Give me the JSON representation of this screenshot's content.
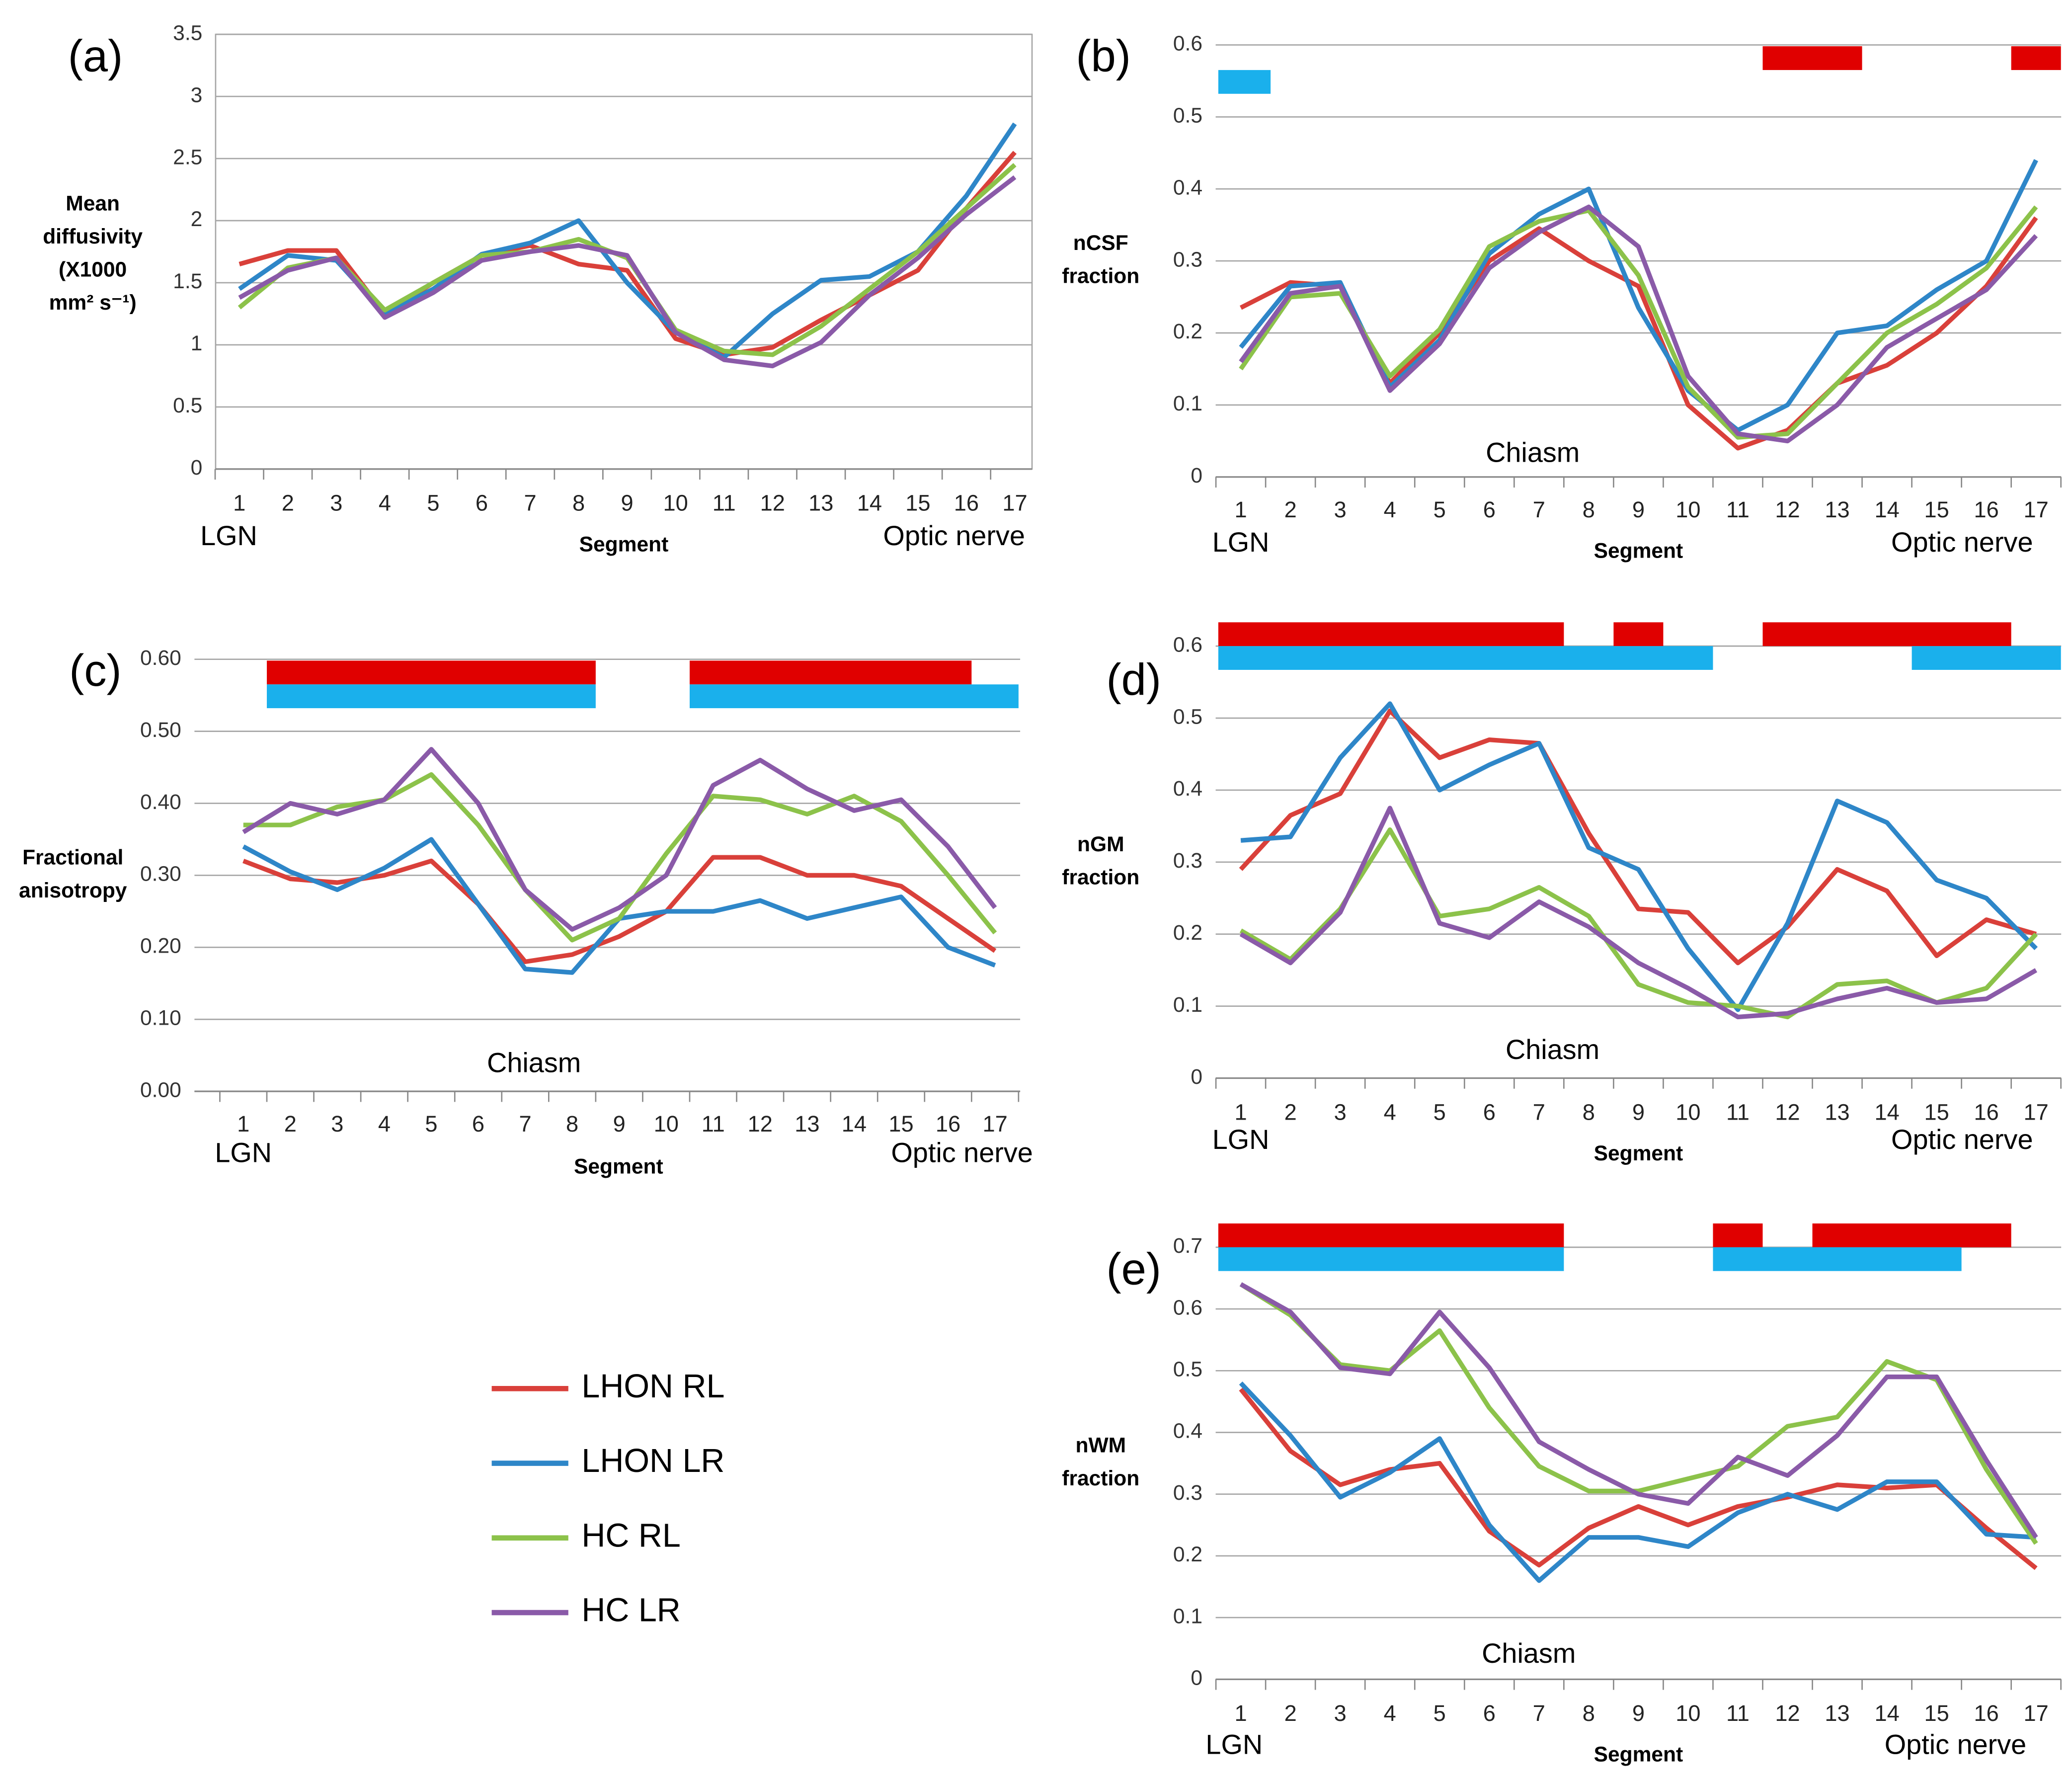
{
  "legend": {
    "entries": [
      {
        "name": "LHON RL",
        "color": "#d9403a"
      },
      {
        "name": "LHON LR",
        "color": "#2e86c8"
      },
      {
        "name": "HC RL",
        "color": "#8cc24a"
      },
      {
        "name": "HC LR",
        "color": "#8a5aa8"
      }
    ]
  },
  "chart_data": [
    {
      "type": "line",
      "panel": "(a)",
      "y_label": [
        "Mean",
        "diffusivity",
        "(X1000",
        "mm² s⁻¹)"
      ],
      "x_label": "Segment",
      "categories": [
        "1",
        "2",
        "3",
        "4",
        "5",
        "6",
        "7",
        "8",
        "9",
        "10",
        "11",
        "12",
        "13",
        "14",
        "15",
        "16",
        "17"
      ],
      "start_label": "LGN",
      "end_label": "Optic nerve",
      "ylim": [
        0,
        3.5
      ],
      "yticks": [
        0,
        0.5,
        1,
        1.5,
        2,
        2.5,
        3,
        3.5
      ],
      "grid": true,
      "series": [
        {
          "values": [
            1.65,
            1.76,
            1.76,
            1.25,
            1.5,
            1.72,
            1.8,
            1.65,
            1.6,
            1.05,
            0.92,
            0.98,
            1.2,
            1.4,
            1.6,
            2.1,
            2.55
          ]
        },
        {
          "values": [
            1.45,
            1.72,
            1.68,
            1.25,
            1.45,
            1.73,
            1.82,
            2.0,
            1.5,
            1.1,
            0.9,
            1.25,
            1.52,
            1.55,
            1.75,
            2.2,
            2.78
          ]
        },
        {
          "values": [
            1.3,
            1.62,
            1.7,
            1.28,
            1.5,
            1.72,
            1.75,
            1.85,
            1.7,
            1.12,
            0.95,
            0.92,
            1.15,
            1.45,
            1.75,
            2.1,
            2.45
          ]
        },
        {
          "values": [
            1.38,
            1.6,
            1.7,
            1.22,
            1.42,
            1.68,
            1.75,
            1.8,
            1.72,
            1.1,
            0.88,
            0.83,
            1.02,
            1.4,
            1.7,
            2.05,
            2.35
          ]
        }
      ]
    },
    {
      "type": "line",
      "panel": "(b)",
      "y_label": [
        "nCSF",
        "fraction"
      ],
      "x_label": "Segment",
      "categories": [
        "1",
        "2",
        "3",
        "4",
        "5",
        "6",
        "7",
        "8",
        "9",
        "10",
        "11",
        "12",
        "13",
        "14",
        "15",
        "16",
        "17"
      ],
      "start_label": "LGN",
      "end_label": "Optic nerve",
      "annotation": "Chiasm",
      "ylim": [
        0,
        0.6
      ],
      "yticks": [
        0,
        0.1,
        0.2,
        0.3,
        0.4,
        0.5,
        0.6
      ],
      "grid": true,
      "bands": [
        {
          "color": "#e00000",
          "spans": [
            [
              11.5,
              13.5
            ],
            [
              16.5,
              17.5
            ]
          ]
        },
        {
          "color": "#1ab0ec",
          "spans": [
            [
              0.5,
              1.6
            ]
          ]
        }
      ],
      "series": [
        {
          "values": [
            0.235,
            0.27,
            0.265,
            0.13,
            0.2,
            0.3,
            0.345,
            0.3,
            0.265,
            0.1,
            0.04,
            0.065,
            0.13,
            0.155,
            0.2,
            0.265,
            0.36
          ]
        },
        {
          "values": [
            0.18,
            0.265,
            0.27,
            0.125,
            0.19,
            0.31,
            0.365,
            0.4,
            0.235,
            0.12,
            0.065,
            0.1,
            0.2,
            0.21,
            0.26,
            0.3,
            0.44
          ]
        },
        {
          "values": [
            0.15,
            0.25,
            0.255,
            0.14,
            0.205,
            0.32,
            0.355,
            0.37,
            0.28,
            0.125,
            0.055,
            0.06,
            0.13,
            0.2,
            0.24,
            0.29,
            0.375
          ]
        },
        {
          "values": [
            0.16,
            0.255,
            0.265,
            0.12,
            0.185,
            0.29,
            0.34,
            0.375,
            0.32,
            0.14,
            0.06,
            0.05,
            0.1,
            0.18,
            0.22,
            0.26,
            0.335
          ]
        }
      ]
    },
    {
      "type": "line",
      "panel": "(c)",
      "y_label": [
        "Fractional",
        "anisotropy"
      ],
      "x_label": "Segment",
      "categories": [
        "1",
        "2",
        "3",
        "4",
        "5",
        "6",
        "7",
        "8",
        "9",
        "10",
        "11",
        "12",
        "13",
        "14",
        "15",
        "16",
        "17"
      ],
      "start_label": "LGN",
      "end_label": "Optic nerve",
      "annotation": "Chiasm",
      "ylim": [
        0,
        0.6
      ],
      "yticks": [
        {
          "value": 0,
          "label": "0.00"
        },
        {
          "value": 0.1,
          "label": "0.10"
        },
        {
          "value": 0.2,
          "label": "0.20"
        },
        {
          "value": 0.3,
          "label": "0.30"
        },
        {
          "value": 0.4,
          "label": "0.40"
        },
        {
          "value": 0.5,
          "label": "0.50"
        },
        {
          "value": 0.6,
          "label": "0.60"
        }
      ],
      "grid": true,
      "bands": [
        {
          "color": "#e00000",
          "spans": [
            [
              1.5,
              8.5
            ],
            [
              10.5,
              16.5
            ]
          ]
        },
        {
          "color": "#1ab0ec",
          "spans": [
            [
              1.5,
              8.5
            ],
            [
              10.5,
              17.5
            ]
          ]
        }
      ],
      "series": [
        {
          "values": [
            0.32,
            0.295,
            0.29,
            0.3,
            0.32,
            0.26,
            0.18,
            0.19,
            0.215,
            0.25,
            0.325,
            0.325,
            0.3,
            0.3,
            0.285,
            0.24,
            0.195
          ]
        },
        {
          "values": [
            0.34,
            0.305,
            0.28,
            0.31,
            0.35,
            0.26,
            0.17,
            0.165,
            0.24,
            0.25,
            0.25,
            0.265,
            0.24,
            0.255,
            0.27,
            0.2,
            0.175
          ]
        },
        {
          "values": [
            0.37,
            0.37,
            0.395,
            0.405,
            0.44,
            0.37,
            0.28,
            0.21,
            0.24,
            0.33,
            0.41,
            0.405,
            0.385,
            0.41,
            0.375,
            0.3,
            0.22
          ]
        },
        {
          "values": [
            0.36,
            0.4,
            0.385,
            0.405,
            0.475,
            0.4,
            0.28,
            0.225,
            0.255,
            0.3,
            0.425,
            0.46,
            0.42,
            0.39,
            0.405,
            0.34,
            0.255
          ]
        }
      ]
    },
    {
      "type": "line",
      "panel": "(d)",
      "y_label": [
        "nGM",
        "fraction"
      ],
      "x_label": "Segment",
      "categories": [
        "1",
        "2",
        "3",
        "4",
        "5",
        "6",
        "7",
        "8",
        "9",
        "10",
        "11",
        "12",
        "13",
        "14",
        "15",
        "16",
        "17"
      ],
      "start_label": "LGN",
      "end_label": "Optic nerve",
      "annotation": "Chiasm",
      "ylim": [
        0,
        0.6
      ],
      "yticks": [
        0,
        0.1,
        0.2,
        0.3,
        0.4,
        0.5,
        0.6
      ],
      "grid": true,
      "bands": [
        {
          "color": "#e00000",
          "spans": [
            [
              0.5,
              7.5
            ],
            [
              8.5,
              9.5
            ],
            [
              11.5,
              16.5
            ]
          ]
        },
        {
          "color": "#1ab0ec",
          "spans": [
            [
              0.5,
              10.5
            ],
            [
              14.5,
              17.5
            ]
          ]
        }
      ],
      "series": [
        {
          "values": [
            0.29,
            0.365,
            0.395,
            0.51,
            0.445,
            0.47,
            0.465,
            0.34,
            0.235,
            0.23,
            0.16,
            0.21,
            0.29,
            0.26,
            0.17,
            0.22,
            0.2
          ]
        },
        {
          "values": [
            0.33,
            0.335,
            0.445,
            0.52,
            0.4,
            0.435,
            0.465,
            0.32,
            0.29,
            0.18,
            0.095,
            0.215,
            0.385,
            0.355,
            0.275,
            0.25,
            0.18
          ]
        },
        {
          "values": [
            0.205,
            0.165,
            0.235,
            0.345,
            0.225,
            0.235,
            0.265,
            0.225,
            0.13,
            0.105,
            0.1,
            0.085,
            0.13,
            0.135,
            0.105,
            0.125,
            0.2
          ]
        },
        {
          "values": [
            0.2,
            0.16,
            0.23,
            0.375,
            0.215,
            0.195,
            0.245,
            0.21,
            0.16,
            0.125,
            0.085,
            0.09,
            0.11,
            0.125,
            0.105,
            0.11,
            0.15
          ]
        }
      ]
    },
    {
      "type": "line",
      "panel": "(e)",
      "y_label": [
        "nWM",
        "fraction"
      ],
      "x_label": "Segment",
      "categories": [
        "1",
        "2",
        "3",
        "4",
        "5",
        "6",
        "7",
        "8",
        "9",
        "10",
        "11",
        "12",
        "13",
        "14",
        "15",
        "16",
        "17"
      ],
      "start_label": "LGN",
      "end_label": "Optic nerve",
      "annotation": "Chiasm",
      "ylim": [
        0,
        0.7
      ],
      "yticks": [
        0,
        0.1,
        0.2,
        0.3,
        0.4,
        0.5,
        0.6,
        0.7
      ],
      "grid": true,
      "bands": [
        {
          "color": "#e00000",
          "spans": [
            [
              0.5,
              7.5
            ],
            [
              10.5,
              11.5
            ],
            [
              12.5,
              16.5
            ]
          ]
        },
        {
          "color": "#1ab0ec",
          "spans": [
            [
              0.5,
              7.5
            ],
            [
              10.5,
              15.5
            ]
          ]
        }
      ],
      "series": [
        {
          "values": [
            0.47,
            0.37,
            0.315,
            0.34,
            0.35,
            0.24,
            0.185,
            0.245,
            0.28,
            0.25,
            0.28,
            0.295,
            0.315,
            0.31,
            0.315,
            0.245,
            0.18
          ]
        },
        {
          "values": [
            0.48,
            0.395,
            0.295,
            0.335,
            0.39,
            0.25,
            0.16,
            0.23,
            0.23,
            0.215,
            0.27,
            0.3,
            0.275,
            0.32,
            0.32,
            0.235,
            0.23
          ]
        },
        {
          "values": [
            0.64,
            0.59,
            0.51,
            0.5,
            0.565,
            0.44,
            0.345,
            0.305,
            0.305,
            0.325,
            0.345,
            0.41,
            0.425,
            0.515,
            0.485,
            0.34,
            0.22
          ]
        },
        {
          "values": [
            0.64,
            0.595,
            0.505,
            0.495,
            0.595,
            0.505,
            0.385,
            0.34,
            0.3,
            0.285,
            0.36,
            0.33,
            0.395,
            0.49,
            0.49,
            0.355,
            0.23
          ]
        }
      ]
    }
  ]
}
